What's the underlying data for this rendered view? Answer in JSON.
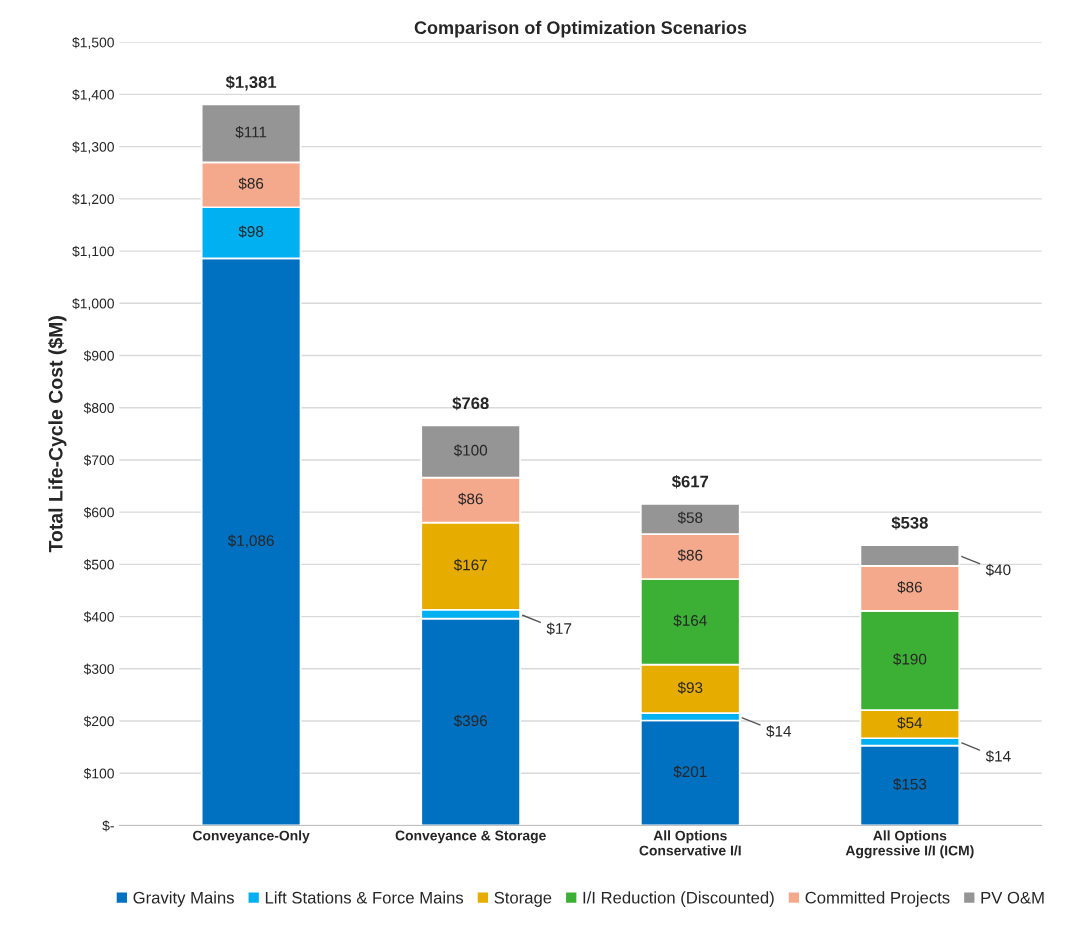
{
  "chart_data": {
    "type": "bar",
    "title": "Comparison of Optimization Scenarios",
    "ylabel": "Total Life-Cycle Cost ($M)",
    "categories": [
      "Conveyance-Only",
      "Conveyance & Storage",
      "All Options\nConservative I/I",
      "All Options\nAggressive I/I (ICM)"
    ],
    "stacked": true,
    "series": [
      {
        "name": "Gravity Mains",
        "color": "#0070c0",
        "values": [
          1086,
          396,
          201,
          153
        ],
        "value_labels": [
          "$1,086",
          "$396",
          "$201",
          "$153"
        ]
      },
      {
        "name": "Lift Stations & Force Mains",
        "color": "#00b0f0",
        "values": [
          98,
          17,
          14,
          14
        ],
        "value_labels": [
          "$98",
          "$17",
          "$14",
          "$14"
        ]
      },
      {
        "name": "Storage",
        "color": "#e6ac00",
        "values": [
          null,
          167,
          93,
          54
        ],
        "value_labels": [
          null,
          "$167",
          "$93",
          "$54"
        ]
      },
      {
        "name": "I/I Reduction (Discounted)",
        "color": "#3cb034",
        "values": [
          null,
          null,
          164,
          190
        ],
        "value_labels": [
          null,
          null,
          "$164",
          "$190"
        ]
      },
      {
        "name": "Committed Projects",
        "color": "#f4a98c",
        "values": [
          86,
          86,
          86,
          86
        ],
        "value_labels": [
          "$86",
          "$86",
          "$86",
          "$86"
        ]
      },
      {
        "name": "PV O&M",
        "color": "#959595",
        "values": [
          111,
          100,
          58,
          40
        ],
        "value_labels": [
          "$111",
          "$100",
          "$58",
          "$40"
        ]
      }
    ],
    "totals": [
      "$1,381",
      "$768",
      "$617",
      "$538"
    ],
    "ylim": [
      0,
      1500
    ],
    "yticks": [
      {
        "value": 0,
        "label": "$-"
      },
      {
        "value": 100,
        "label": "$100"
      },
      {
        "value": 200,
        "label": "$200"
      },
      {
        "value": 300,
        "label": "$300"
      },
      {
        "value": 400,
        "label": "$400"
      },
      {
        "value": 500,
        "label": "$500"
      },
      {
        "value": 600,
        "label": "$600"
      },
      {
        "value": 700,
        "label": "$700"
      },
      {
        "value": 800,
        "label": "$800"
      },
      {
        "value": 900,
        "label": "$900"
      },
      {
        "value": 1000,
        "label": "$1,000"
      },
      {
        "value": 1100,
        "label": "$1,100"
      },
      {
        "value": 1200,
        "label": "$1,200"
      },
      {
        "value": 1300,
        "label": "$1,300"
      },
      {
        "value": 1400,
        "label": "$1,400"
      },
      {
        "value": 1500,
        "label": "$1,500"
      }
    ],
    "grid": "y",
    "legend": "bottom"
  }
}
